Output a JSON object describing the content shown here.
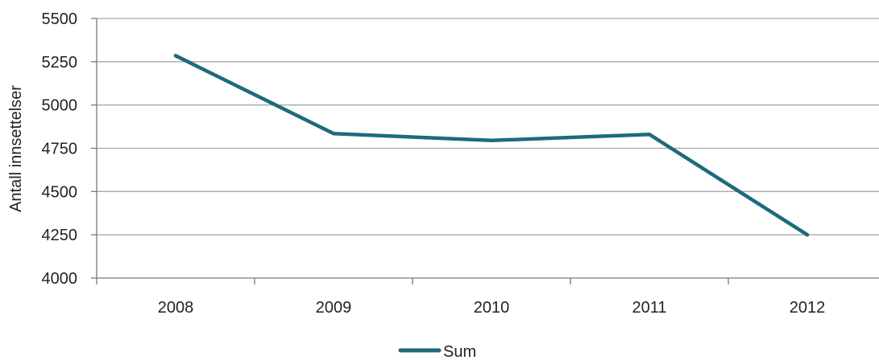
{
  "chart_data": {
    "type": "line",
    "categories": [
      "2008",
      "2009",
      "2010",
      "2011",
      "2012"
    ],
    "series": [
      {
        "name": "Sum",
        "values": [
          5285,
          4835,
          4795,
          4830,
          4250
        ]
      }
    ],
    "title": "",
    "xlabel": "",
    "ylabel": "Antall innsettelser",
    "ylim": [
      4000,
      5500
    ],
    "yticks": [
      4000,
      4250,
      4500,
      4750,
      5000,
      5250,
      5500
    ],
    "grid": true,
    "legend": "bottom-center",
    "colors": {
      "line": "#1e6a7d",
      "grid": "#a8a8a8",
      "axis": "#7a7a7a"
    }
  }
}
